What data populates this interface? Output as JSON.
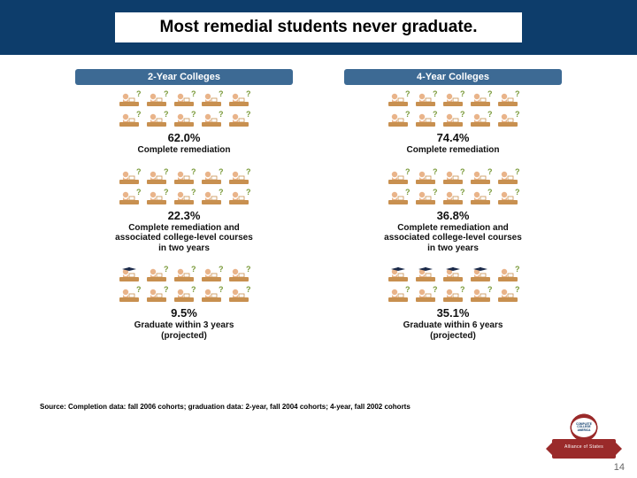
{
  "title": "Most remedial students never graduate.",
  "columns": [
    {
      "header": "2-Year Colleges",
      "sections": [
        {
          "value": "62.0%",
          "label": "Complete remediation",
          "icons": 10,
          "grads": 0
        },
        {
          "value": "22.3%",
          "label": "Complete remediation and\nassociated college-level courses\nin two years",
          "icons": 10,
          "grads": 0
        },
        {
          "value": "9.5%",
          "label": "Graduate within 3 years\n(projected)",
          "icons": 10,
          "grads": 1
        }
      ]
    },
    {
      "header": "4-Year Colleges",
      "sections": [
        {
          "value": "74.4%",
          "label": "Complete remediation",
          "icons": 10,
          "grads": 0
        },
        {
          "value": "36.8%",
          "label": "Complete remediation and\nassociated college-level courses\nin two years",
          "icons": 10,
          "grads": 0
        },
        {
          "value": "35.1%",
          "label": "Graduate within 6 years\n(projected)",
          "icons": 10,
          "grads": 4
        }
      ]
    }
  ],
  "icon_colors": {
    "skin": "#e9b48a",
    "desk": "#c89050",
    "question": "#7a9a3a",
    "grad_cap": "#1b2a4a"
  },
  "source": "Source: Completion data: fall 2006 cohorts; graduation data: 2-year, fall 2004 cohorts; 4-year, fall 2002 cohorts",
  "logo": {
    "center_text": "COMPLETE COLLEGE AMERICA",
    "ribbon_text": "Alliance of States"
  },
  "page_number": "14",
  "colors": {
    "header_band": "#0d3d6b",
    "col_header_bg": "#3d6a94",
    "ribbon": "#9a2a2a"
  }
}
